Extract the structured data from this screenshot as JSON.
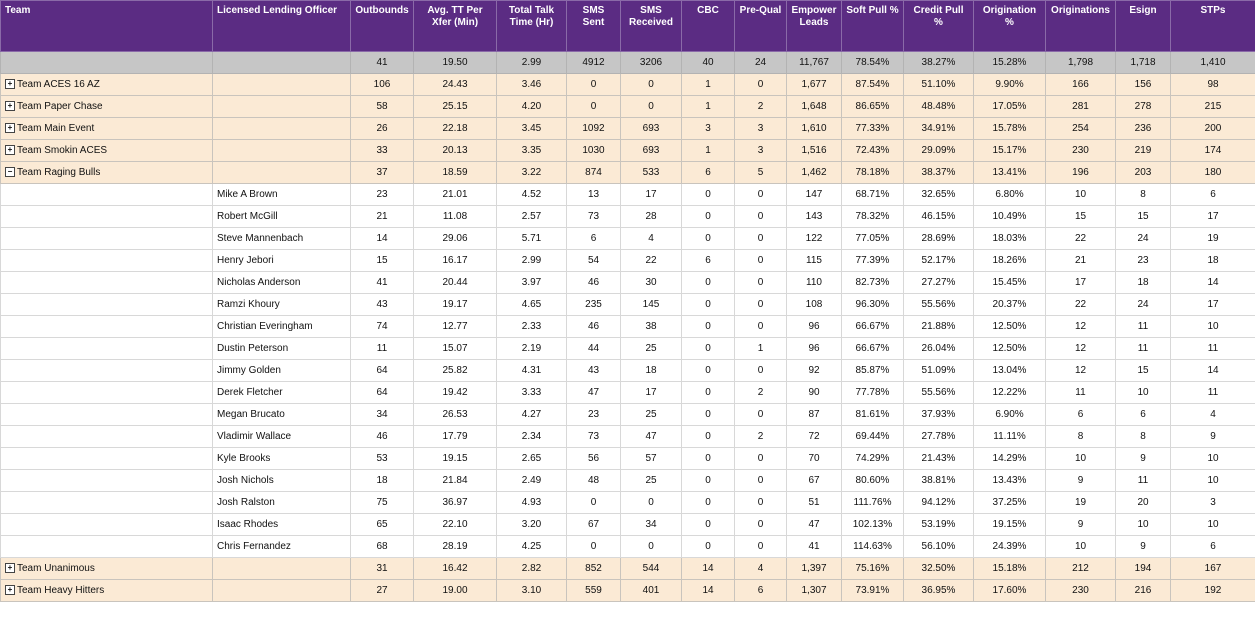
{
  "columns": [
    "Team",
    "Licensed Lending Officer",
    "Outbounds",
    "Avg. TT Per Xfer (Min)",
    "Total Talk Time (Hr)",
    "SMS Sent",
    "SMS Received",
    "CBC",
    "Pre-Qual",
    "Empower Leads",
    "Soft Pull %",
    "Credit Pull %",
    "Origination %",
    "Originations",
    "Esign",
    "STPs"
  ],
  "totals": [
    "41",
    "19.50",
    "2.99",
    "4912",
    "3206",
    "40",
    "24",
    "11,767",
    "78.54%",
    "38.27%",
    "15.28%",
    "1,798",
    "1,718",
    "1,410"
  ],
  "rows": [
    {
      "type": "team",
      "expander": "+",
      "team": "Team ACES 16 AZ",
      "officer": "",
      "values": [
        "106",
        "24.43",
        "3.46",
        "0",
        "0",
        "1",
        "0",
        "1,677",
        "87.54%",
        "51.10%",
        "9.90%",
        "166",
        "156",
        "98"
      ]
    },
    {
      "type": "team",
      "expander": "+",
      "team": "Team Paper Chase",
      "officer": "",
      "values": [
        "58",
        "25.15",
        "4.20",
        "0",
        "0",
        "1",
        "2",
        "1,648",
        "86.65%",
        "48.48%",
        "17.05%",
        "281",
        "278",
        "215"
      ]
    },
    {
      "type": "team",
      "expander": "+",
      "team": "Team Main Event",
      "officer": "",
      "values": [
        "26",
        "22.18",
        "3.45",
        "1092",
        "693",
        "3",
        "3",
        "1,610",
        "77.33%",
        "34.91%",
        "15.78%",
        "254",
        "236",
        "200"
      ]
    },
    {
      "type": "team",
      "expander": "+",
      "team": "Team Smokin ACES",
      "officer": "",
      "values": [
        "33",
        "20.13",
        "3.35",
        "1030",
        "693",
        "1",
        "3",
        "1,516",
        "72.43%",
        "29.09%",
        "15.17%",
        "230",
        "219",
        "174"
      ]
    },
    {
      "type": "team",
      "expander": "−",
      "team": "Team Raging Bulls",
      "officer": "",
      "values": [
        "37",
        "18.59",
        "3.22",
        "874",
        "533",
        "6",
        "5",
        "1,462",
        "78.18%",
        "38.37%",
        "13.41%",
        "196",
        "203",
        "180"
      ]
    },
    {
      "type": "member",
      "team": "",
      "officer": "Mike A Brown",
      "values": [
        "23",
        "21.01",
        "4.52",
        "13",
        "17",
        "0",
        "0",
        "147",
        "68.71%",
        "32.65%",
        "6.80%",
        "10",
        "8",
        "6"
      ]
    },
    {
      "type": "member",
      "team": "",
      "officer": "Robert McGill",
      "values": [
        "21",
        "11.08",
        "2.57",
        "73",
        "28",
        "0",
        "0",
        "143",
        "78.32%",
        "46.15%",
        "10.49%",
        "15",
        "15",
        "17"
      ]
    },
    {
      "type": "member",
      "team": "",
      "officer": "Steve Mannenbach",
      "values": [
        "14",
        "29.06",
        "5.71",
        "6",
        "4",
        "0",
        "0",
        "122",
        "77.05%",
        "28.69%",
        "18.03%",
        "22",
        "24",
        "19"
      ]
    },
    {
      "type": "member",
      "team": "",
      "officer": "Henry Jebori",
      "values": [
        "15",
        "16.17",
        "2.99",
        "54",
        "22",
        "6",
        "0",
        "115",
        "77.39%",
        "52.17%",
        "18.26%",
        "21",
        "23",
        "18"
      ]
    },
    {
      "type": "member",
      "team": "",
      "officer": "Nicholas Anderson",
      "values": [
        "41",
        "20.44",
        "3.97",
        "46",
        "30",
        "0",
        "0",
        "110",
        "82.73%",
        "27.27%",
        "15.45%",
        "17",
        "18",
        "14"
      ]
    },
    {
      "type": "member",
      "team": "",
      "officer": "Ramzi Khoury",
      "values": [
        "43",
        "19.17",
        "4.65",
        "235",
        "145",
        "0",
        "0",
        "108",
        "96.30%",
        "55.56%",
        "20.37%",
        "22",
        "24",
        "17"
      ]
    },
    {
      "type": "member",
      "team": "",
      "officer": "Christian Everingham",
      "values": [
        "74",
        "12.77",
        "2.33",
        "46",
        "38",
        "0",
        "0",
        "96",
        "66.67%",
        "21.88%",
        "12.50%",
        "12",
        "11",
        "10"
      ]
    },
    {
      "type": "member",
      "team": "",
      "officer": "Dustin Peterson",
      "values": [
        "11",
        "15.07",
        "2.19",
        "44",
        "25",
        "0",
        "1",
        "96",
        "66.67%",
        "26.04%",
        "12.50%",
        "12",
        "11",
        "11"
      ]
    },
    {
      "type": "member",
      "team": "",
      "officer": "Jimmy Golden",
      "values": [
        "64",
        "25.82",
        "4.31",
        "43",
        "18",
        "0",
        "0",
        "92",
        "85.87%",
        "51.09%",
        "13.04%",
        "12",
        "15",
        "14"
      ]
    },
    {
      "type": "member",
      "team": "",
      "officer": "Derek Fletcher",
      "values": [
        "64",
        "19.42",
        "3.33",
        "47",
        "17",
        "0",
        "2",
        "90",
        "77.78%",
        "55.56%",
        "12.22%",
        "11",
        "10",
        "11"
      ]
    },
    {
      "type": "member",
      "team": "",
      "officer": "Megan Brucato",
      "values": [
        "34",
        "26.53",
        "4.27",
        "23",
        "25",
        "0",
        "0",
        "87",
        "81.61%",
        "37.93%",
        "6.90%",
        "6",
        "6",
        "4"
      ]
    },
    {
      "type": "member",
      "team": "",
      "officer": "Vladimir Wallace",
      "values": [
        "46",
        "17.79",
        "2.34",
        "73",
        "47",
        "0",
        "2",
        "72",
        "69.44%",
        "27.78%",
        "11.11%",
        "8",
        "8",
        "9"
      ]
    },
    {
      "type": "member",
      "team": "",
      "officer": "Kyle Brooks",
      "values": [
        "53",
        "19.15",
        "2.65",
        "56",
        "57",
        "0",
        "0",
        "70",
        "74.29%",
        "21.43%",
        "14.29%",
        "10",
        "9",
        "10"
      ]
    },
    {
      "type": "member",
      "team": "",
      "officer": "Josh Nichols",
      "values": [
        "18",
        "21.84",
        "2.49",
        "48",
        "25",
        "0",
        "0",
        "67",
        "80.60%",
        "38.81%",
        "13.43%",
        "9",
        "11",
        "10"
      ]
    },
    {
      "type": "member",
      "team": "",
      "officer": "Josh Ralston",
      "values": [
        "75",
        "36.97",
        "4.93",
        "0",
        "0",
        "0",
        "0",
        "51",
        "111.76%",
        "94.12%",
        "37.25%",
        "19",
        "20",
        "3"
      ]
    },
    {
      "type": "member",
      "team": "",
      "officer": "Isaac Rhodes",
      "values": [
        "65",
        "22.10",
        "3.20",
        "67",
        "34",
        "0",
        "0",
        "47",
        "102.13%",
        "53.19%",
        "19.15%",
        "9",
        "10",
        "10"
      ]
    },
    {
      "type": "member",
      "team": "",
      "officer": "Chris Fernandez",
      "values": [
        "68",
        "28.19",
        "4.25",
        "0",
        "0",
        "0",
        "0",
        "41",
        "114.63%",
        "56.10%",
        "24.39%",
        "10",
        "9",
        "6"
      ]
    },
    {
      "type": "team",
      "expander": "+",
      "team": "Team Unanimous",
      "officer": "",
      "values": [
        "31",
        "16.42",
        "2.82",
        "852",
        "544",
        "14",
        "4",
        "1,397",
        "75.16%",
        "32.50%",
        "15.18%",
        "212",
        "194",
        "167"
      ]
    },
    {
      "type": "team",
      "expander": "+",
      "team": "Team Heavy Hitters",
      "officer": "",
      "values": [
        "27",
        "19.00",
        "3.10",
        "559",
        "401",
        "14",
        "6",
        "1,307",
        "73.91%",
        "36.95%",
        "17.60%",
        "230",
        "216",
        "192"
      ]
    }
  ]
}
